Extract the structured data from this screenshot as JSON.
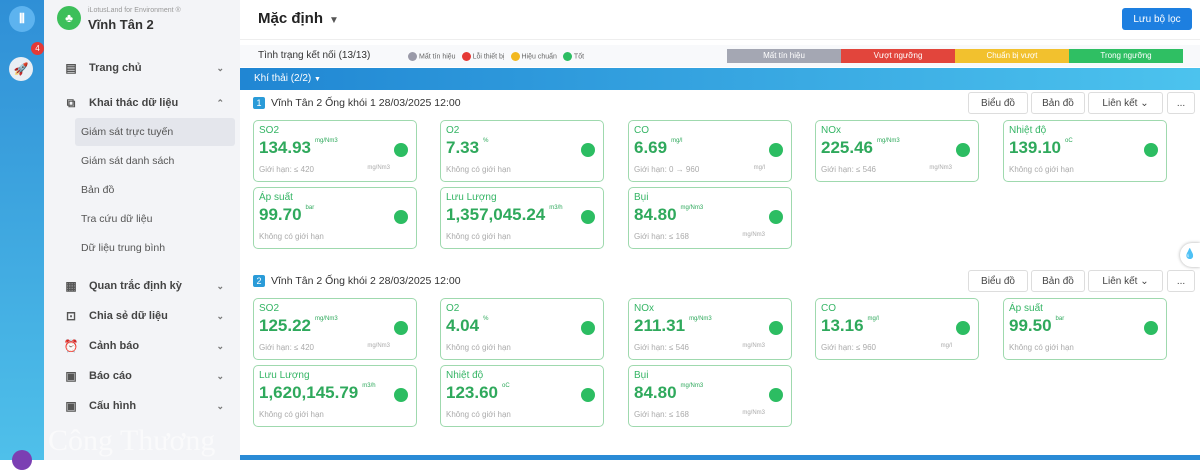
{
  "rail": {
    "badge_count": "4"
  },
  "brand": {
    "subtitle": "iLotusLand for Environment ®",
    "title": "Vĩnh Tân 2"
  },
  "sidebar": {
    "items": [
      {
        "label": "Trang chủ",
        "icon": "layout-icon",
        "chev": "⌄"
      },
      {
        "label": "Khai thác dữ liệu",
        "icon": "screen-share-icon",
        "chev": "⌃"
      },
      {
        "label": "Quan trắc định kỳ",
        "icon": "document-icon",
        "chev": "⌄"
      },
      {
        "label": "Chia sẻ dữ liệu",
        "icon": "scan-icon",
        "chev": "⌄"
      },
      {
        "label": "Cảnh báo",
        "icon": "alarm-icon",
        "chev": "⌄"
      },
      {
        "label": "Báo cáo",
        "icon": "report-icon",
        "chev": "⌄"
      },
      {
        "label": "Cấu hình",
        "icon": "settings-monitor-icon",
        "chev": "⌄"
      }
    ],
    "subitems": [
      "Giám sát trực tuyến",
      "Giám sát danh sách",
      "Bản đồ",
      "Tra cứu dữ liệu",
      "Dữ liệu trung bình"
    ]
  },
  "watermark": "Công Thương",
  "header": {
    "title": "Mặc định",
    "save_label": "Lưu bộ lọc"
  },
  "status": {
    "label": "Tình trạng kết nối (13/13)",
    "legend": [
      {
        "label": "Mất tín hiệu",
        "color": "#9a9aa8"
      },
      {
        "label": "Lỗi thiết bị",
        "color": "#e53935"
      },
      {
        "label": "Hiệu chuẩn",
        "color": "#f2b820"
      },
      {
        "label": "Tốt",
        "color": "#2cbd62"
      }
    ],
    "bars": [
      {
        "label": "Mất tín hiệu",
        "color": "#a4a7b3"
      },
      {
        "label": "Vượt ngưỡng",
        "color": "#e2453c"
      },
      {
        "label": "Chuẩn bị vượt",
        "color": "#f2c12e"
      },
      {
        "label": "Trong ngưỡng",
        "color": "#2fbf63"
      }
    ]
  },
  "group": {
    "label": "Khí thải (2/2)"
  },
  "buttons": {
    "chart": "Biểu đồ",
    "map": "Bản đồ",
    "link": "Liên kết ⌄",
    "more": "..."
  },
  "stations": [
    {
      "num": "1",
      "name": "Vĩnh Tân 2 Ống khói 1  28/03/2025 12:00",
      "cards": [
        {
          "name": "SO2",
          "value": "134.93",
          "unit": "mg/Nm3",
          "limit": "Giới hạn: ≤ 420",
          "unit2": "mg/Nm3"
        },
        {
          "name": "O2",
          "value": "7.33",
          "unit": "%",
          "limit": "Không có giới hạn",
          "unit2": ""
        },
        {
          "name": "CO",
          "value": "6.69",
          "unit": "mg/l",
          "limit": "Giới hạn: 0 → 960",
          "unit2": "mg/l"
        },
        {
          "name": "NOx",
          "value": "225.46",
          "unit": "mg/Nm3",
          "limit": "Giới hạn: ≤ 546",
          "unit2": "mg/Nm3"
        },
        {
          "name": "Nhiệt độ",
          "value": "139.10",
          "unit": "oC",
          "limit": "Không có giới hạn",
          "unit2": ""
        },
        {
          "name": "Áp suất",
          "value": "99.70",
          "unit": "bar",
          "limit": "Không có giới hạn",
          "unit2": ""
        },
        {
          "name": "Lưu Lượng",
          "value": "1,357,045.24",
          "unit": "m3/h",
          "limit": "Không có giới hạn",
          "unit2": ""
        },
        {
          "name": "Bụi",
          "value": "84.80",
          "unit": "mg/Nm3",
          "limit": "Giới hạn: ≤ 168",
          "unit2": "mg/Nm3"
        }
      ]
    },
    {
      "num": "2",
      "name": "Vĩnh Tân 2 Ống khói 2  28/03/2025 12:00",
      "cards": [
        {
          "name": "SO2",
          "value": "125.22",
          "unit": "mg/Nm3",
          "limit": "Giới hạn: ≤ 420",
          "unit2": "mg/Nm3"
        },
        {
          "name": "O2",
          "value": "4.04",
          "unit": "%",
          "limit": "Không có giới hạn",
          "unit2": ""
        },
        {
          "name": "NOx",
          "value": "211.31",
          "unit": "mg/Nm3",
          "limit": "Giới hạn: ≤ 546",
          "unit2": "mg/Nm3"
        },
        {
          "name": "CO",
          "value": "13.16",
          "unit": "mg/l",
          "limit": "Giới hạn: ≤ 960",
          "unit2": "mg/l"
        },
        {
          "name": "Áp suất",
          "value": "99.50",
          "unit": "bar",
          "limit": "Không có giới hạn",
          "unit2": ""
        },
        {
          "name": "Lưu Lượng",
          "value": "1,620,145.79",
          "unit": "m3/h",
          "limit": "Không có giới hạn",
          "unit2": ""
        },
        {
          "name": "Nhiệt độ",
          "value": "123.60",
          "unit": "oC",
          "limit": "Không có giới hạn",
          "unit2": ""
        },
        {
          "name": "Bụi",
          "value": "84.80",
          "unit": "mg/Nm3",
          "limit": "Giới hạn: ≤ 168",
          "unit2": "mg/Nm3"
        }
      ]
    }
  ]
}
